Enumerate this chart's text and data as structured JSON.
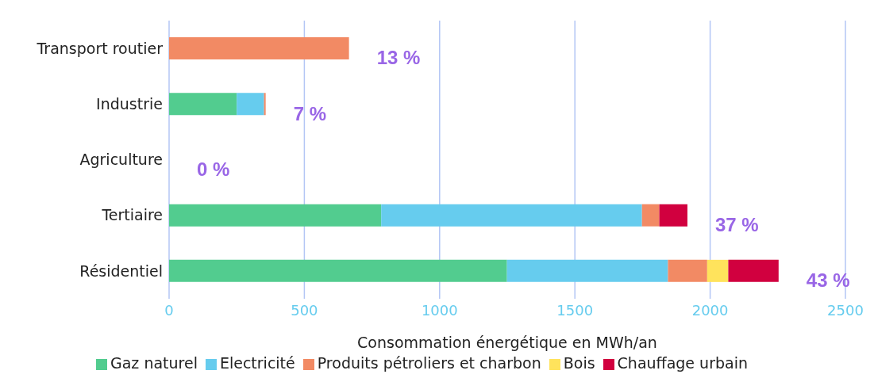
{
  "chart_data": {
    "type": "bar",
    "orientation": "horizontal",
    "stacked": true,
    "xlabel": "Consommation énergétique en MWh/an",
    "categories": [
      "Transport routier",
      "Industrie",
      "Agriculture",
      "Tertiaire",
      "Résidentiel"
    ],
    "series": [
      {
        "name": "Gaz naturel",
        "color": "#52cc8f",
        "values": [
          0,
          250,
          0,
          784,
          1249
        ]
      },
      {
        "name": "Electricité",
        "color": "#66ccee",
        "values": [
          0,
          101,
          0,
          964,
          595
        ]
      },
      {
        "name": "Produits pétroliers et charbon",
        "color": "#f28a64",
        "values": [
          665,
          6,
          0,
          64,
          145
        ]
      },
      {
        "name": "Bois",
        "color": "#ffe35c",
        "values": [
          0,
          0,
          0,
          0,
          78
        ]
      },
      {
        "name": "Chauffage urbain",
        "color": "#d1003f",
        "values": [
          0,
          0,
          0,
          104,
          186
        ]
      }
    ],
    "annotations": [
      {
        "text": "13 %",
        "x": 665,
        "y": "Transport routier"
      },
      {
        "text": "7 %",
        "x": 357,
        "y": "Industrie"
      },
      {
        "text": "0 %",
        "x": 0,
        "y": "Agriculture"
      },
      {
        "text": "37 %",
        "x": 1916,
        "y": "Tertiaire"
      },
      {
        "text": "43 %",
        "x": 2253,
        "y": "Résidentiel"
      }
    ],
    "xlim": [
      0,
      2500
    ],
    "xticks": [
      0,
      500,
      1000,
      1500,
      2000,
      2500
    ],
    "grid": "x",
    "legend": "bottom"
  }
}
